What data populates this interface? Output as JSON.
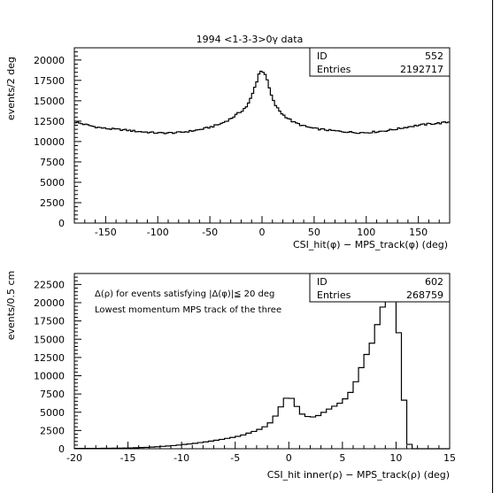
{
  "chart_data": [
    {
      "type": "histogram",
      "title": "1994 <1-3-3>0γ data",
      "xlabel": "CSI_hit(φ) − MPS_track(φ) (deg)",
      "ylabel": "events/2 deg",
      "xlim": [
        -180,
        180
      ],
      "ylim": [
        0,
        21500
      ],
      "xticks": [
        -150,
        -100,
        -50,
        0,
        50,
        100,
        150
      ],
      "yticks": [
        0,
        2500,
        5000,
        7500,
        10000,
        12500,
        15000,
        17500,
        20000
      ],
      "bin_width": 2,
      "stats": [
        {
          "label": "ID",
          "value": "552"
        },
        {
          "label": "Entries",
          "value": "2192717"
        }
      ],
      "annotations": [],
      "profile": [
        [
          -180,
          12400
        ],
        [
          -170,
          12100
        ],
        [
          -160,
          11800
        ],
        [
          -150,
          11600
        ],
        [
          -140,
          11500
        ],
        [
          -130,
          11400
        ],
        [
          -120,
          11250
        ],
        [
          -110,
          11150
        ],
        [
          -100,
          11050
        ],
        [
          -90,
          11050
        ],
        [
          -80,
          11100
        ],
        [
          -70,
          11250
        ],
        [
          -60,
          11450
        ],
        [
          -50,
          11750
        ],
        [
          -40,
          12150
        ],
        [
          -30,
          12800
        ],
        [
          -20,
          13700
        ],
        [
          -14,
          14400
        ],
        [
          -10,
          15500
        ],
        [
          -6,
          17000
        ],
        [
          -3,
          18300
        ],
        [
          0,
          18750
        ],
        [
          3,
          18300
        ],
        [
          6,
          17000
        ],
        [
          10,
          15200
        ],
        [
          14,
          14200
        ],
        [
          20,
          13300
        ],
        [
          30,
          12400
        ],
        [
          40,
          11900
        ],
        [
          50,
          11600
        ],
        [
          60,
          11450
        ],
        [
          70,
          11300
        ],
        [
          80,
          11200
        ],
        [
          90,
          11100
        ],
        [
          100,
          11100
        ],
        [
          110,
          11200
        ],
        [
          120,
          11350
        ],
        [
          130,
          11550
        ],
        [
          140,
          11800
        ],
        [
          150,
          12000
        ],
        [
          160,
          12150
        ],
        [
          170,
          12250
        ],
        [
          180,
          12400
        ]
      ]
    },
    {
      "type": "histogram",
      "title": "",
      "xlabel": "CSI_hit inner(ρ) − MPS_track(ρ) (deg)",
      "ylabel": "events/0.5 cm",
      "xlim": [
        -20,
        15
      ],
      "ylim": [
        0,
        24000
      ],
      "xticks": [
        -20,
        -15,
        -10,
        -5,
        0,
        5,
        10,
        15
      ],
      "yticks": [
        0,
        2500,
        5000,
        7500,
        10000,
        12500,
        15000,
        17500,
        20000,
        22500
      ],
      "bin_width": 0.5,
      "stats": [
        {
          "label": "ID",
          "value": "602"
        },
        {
          "label": "Entries",
          "value": "268759"
        }
      ],
      "annotations": [
        "Δ(ρ) for events satisfying |Δ(φ)|≦ 20 deg",
        "Lowest momentum MPS track of the three"
      ],
      "profile": [
        [
          -20,
          40
        ],
        [
          -17,
          60
        ],
        [
          -15,
          100
        ],
        [
          -13,
          200
        ],
        [
          -11,
          400
        ],
        [
          -9,
          700
        ],
        [
          -7,
          1100
        ],
        [
          -5,
          1600
        ],
        [
          -4,
          2000
        ],
        [
          -3,
          2500
        ],
        [
          -2,
          3200
        ],
        [
          -1.5,
          3900
        ],
        [
          -1,
          5000
        ],
        [
          -0.5,
          6500
        ],
        [
          0,
          7400
        ],
        [
          0.5,
          6500
        ],
        [
          1,
          5000
        ],
        [
          1.5,
          4500
        ],
        [
          2,
          4300
        ],
        [
          2.5,
          4350
        ],
        [
          3,
          4800
        ],
        [
          3.5,
          5200
        ],
        [
          4,
          5600
        ],
        [
          4.5,
          6000
        ],
        [
          5,
          6500
        ],
        [
          5.5,
          7200
        ],
        [
          6,
          8300
        ],
        [
          6.5,
          10200
        ],
        [
          7,
          12000
        ],
        [
          7.5,
          13600
        ],
        [
          8,
          15500
        ],
        [
          8.5,
          18500
        ],
        [
          9,
          20000
        ],
        [
          9.5,
          21800
        ],
        [
          10,
          20000
        ],
        [
          10.5,
          12000
        ],
        [
          11,
          1200
        ],
        [
          11.5,
          0
        ],
        [
          15,
          0
        ]
      ],
      "spikes": [
        [
          9.75,
          21900
        ]
      ]
    }
  ]
}
